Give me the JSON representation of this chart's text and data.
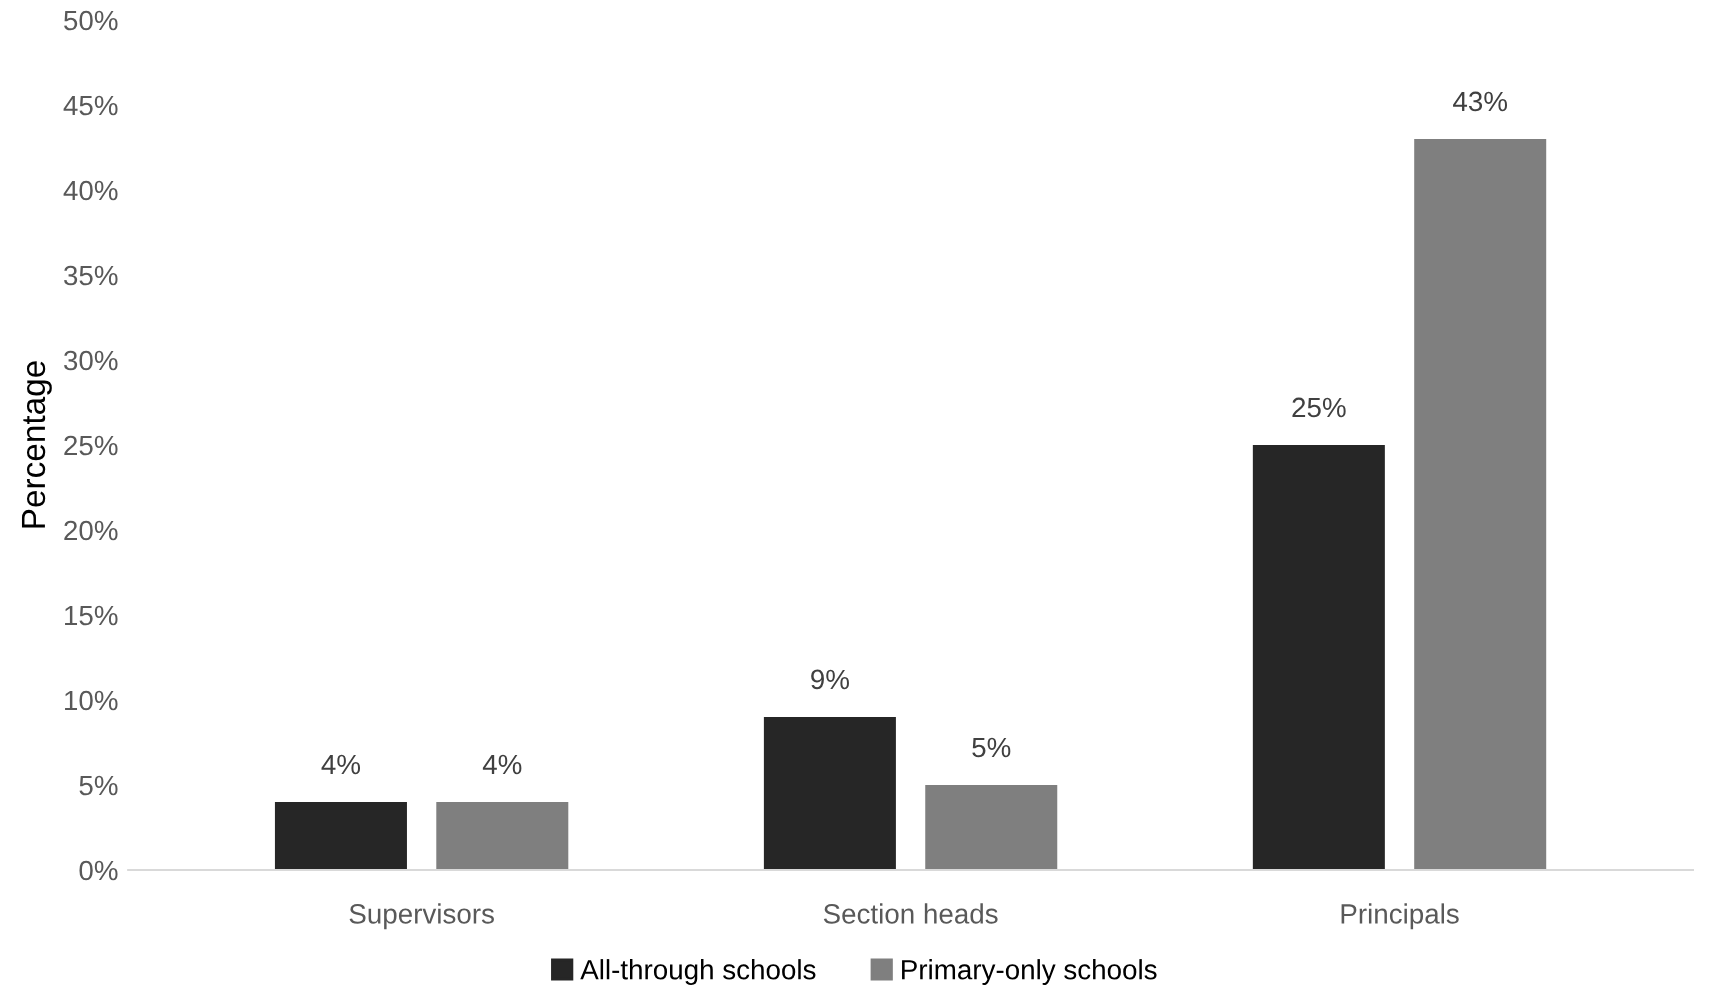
{
  "chart_data": {
    "type": "bar",
    "ylabel": "Percentage",
    "categories": [
      "Supervisors",
      "Section heads",
      "Principals"
    ],
    "series": [
      {
        "name": "All-through schools",
        "color": "#262626",
        "values": [
          4,
          9,
          25
        ],
        "value_labels": [
          "4%",
          "9%",
          "25%"
        ]
      },
      {
        "name": "Primary-only schools",
        "color": "#7f7f7f",
        "values": [
          4,
          5,
          43
        ],
        "value_labels": [
          "4%",
          "5%",
          "43%"
        ]
      }
    ],
    "ylim": [
      0,
      50
    ],
    "yticks": [
      {
        "value": 0,
        "label": "0%"
      },
      {
        "value": 5,
        "label": "5%"
      },
      {
        "value": 10,
        "label": "10%"
      },
      {
        "value": 15,
        "label": "15%"
      },
      {
        "value": 20,
        "label": "20%"
      },
      {
        "value": 25,
        "label": "25%"
      },
      {
        "value": 30,
        "label": "30%"
      },
      {
        "value": 35,
        "label": "35%"
      },
      {
        "value": 40,
        "label": "40%"
      },
      {
        "value": 45,
        "label": "45%"
      },
      {
        "value": 50,
        "label": "50%"
      }
    ],
    "grid": false,
    "legend": "bottom"
  }
}
